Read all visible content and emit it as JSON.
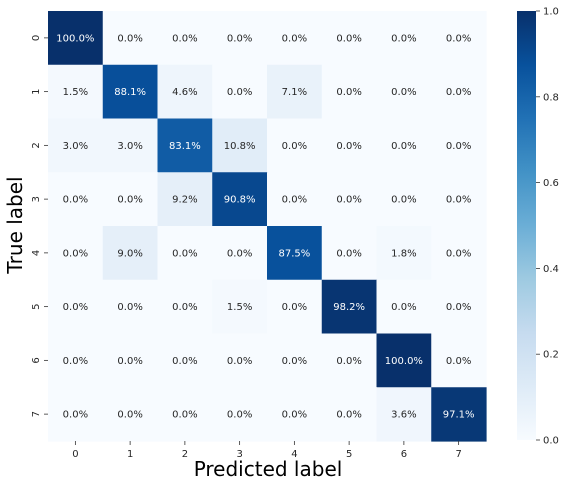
{
  "chart_data": {
    "type": "heatmap",
    "xlabel": "Predicted label",
    "ylabel": "True label",
    "x_categories": [
      "0",
      "1",
      "2",
      "3",
      "4",
      "5",
      "6",
      "7"
    ],
    "y_categories": [
      "0",
      "1",
      "2",
      "3",
      "4",
      "5",
      "6",
      "7"
    ],
    "values": [
      [
        1.0,
        0.0,
        0.0,
        0.0,
        0.0,
        0.0,
        0.0,
        0.0
      ],
      [
        0.015,
        0.881,
        0.046,
        0.0,
        0.071,
        0.0,
        0.0,
        0.0
      ],
      [
        0.03,
        0.03,
        0.831,
        0.108,
        0.0,
        0.0,
        0.0,
        0.0
      ],
      [
        0.0,
        0.0,
        0.092,
        0.908,
        0.0,
        0.0,
        0.0,
        0.0
      ],
      [
        0.0,
        0.09,
        0.0,
        0.0,
        0.875,
        0.0,
        0.018,
        0.0
      ],
      [
        0.0,
        0.0,
        0.0,
        0.015,
        0.0,
        0.982,
        0.0,
        0.0
      ],
      [
        0.0,
        0.0,
        0.0,
        0.0,
        0.0,
        0.0,
        1.0,
        0.0
      ],
      [
        0.0,
        0.0,
        0.0,
        0.0,
        0.0,
        0.0,
        0.036,
        0.971
      ]
    ],
    "annotations": [
      [
        "100.0%",
        "0.0%",
        "0.0%",
        "0.0%",
        "0.0%",
        "0.0%",
        "0.0%",
        "0.0%"
      ],
      [
        "1.5%",
        "88.1%",
        "4.6%",
        "0.0%",
        "7.1%",
        "0.0%",
        "0.0%",
        "0.0%"
      ],
      [
        "3.0%",
        "3.0%",
        "83.1%",
        "10.8%",
        "0.0%",
        "0.0%",
        "0.0%",
        "0.0%"
      ],
      [
        "0.0%",
        "0.0%",
        "9.2%",
        "90.8%",
        "0.0%",
        "0.0%",
        "0.0%",
        "0.0%"
      ],
      [
        "0.0%",
        "9.0%",
        "0.0%",
        "0.0%",
        "87.5%",
        "0.0%",
        "1.8%",
        "0.0%"
      ],
      [
        "0.0%",
        "0.0%",
        "0.0%",
        "1.5%",
        "0.0%",
        "98.2%",
        "0.0%",
        "0.0%"
      ],
      [
        "0.0%",
        "0.0%",
        "0.0%",
        "0.0%",
        "0.0%",
        "0.0%",
        "100.0%",
        "0.0%"
      ],
      [
        "0.0%",
        "0.0%",
        "0.0%",
        "0.0%",
        "0.0%",
        "0.0%",
        "3.6%",
        "97.1%"
      ]
    ],
    "colorbar": {
      "colormap": "Blues",
      "range": [
        0.0,
        1.0
      ],
      "ticks": [
        0.0,
        0.2,
        0.4,
        0.6,
        0.8,
        1.0
      ],
      "tick_labels": [
        "0.0",
        "0.2",
        "0.4",
        "0.6",
        "0.8",
        "1.0"
      ]
    },
    "grid": false
  }
}
